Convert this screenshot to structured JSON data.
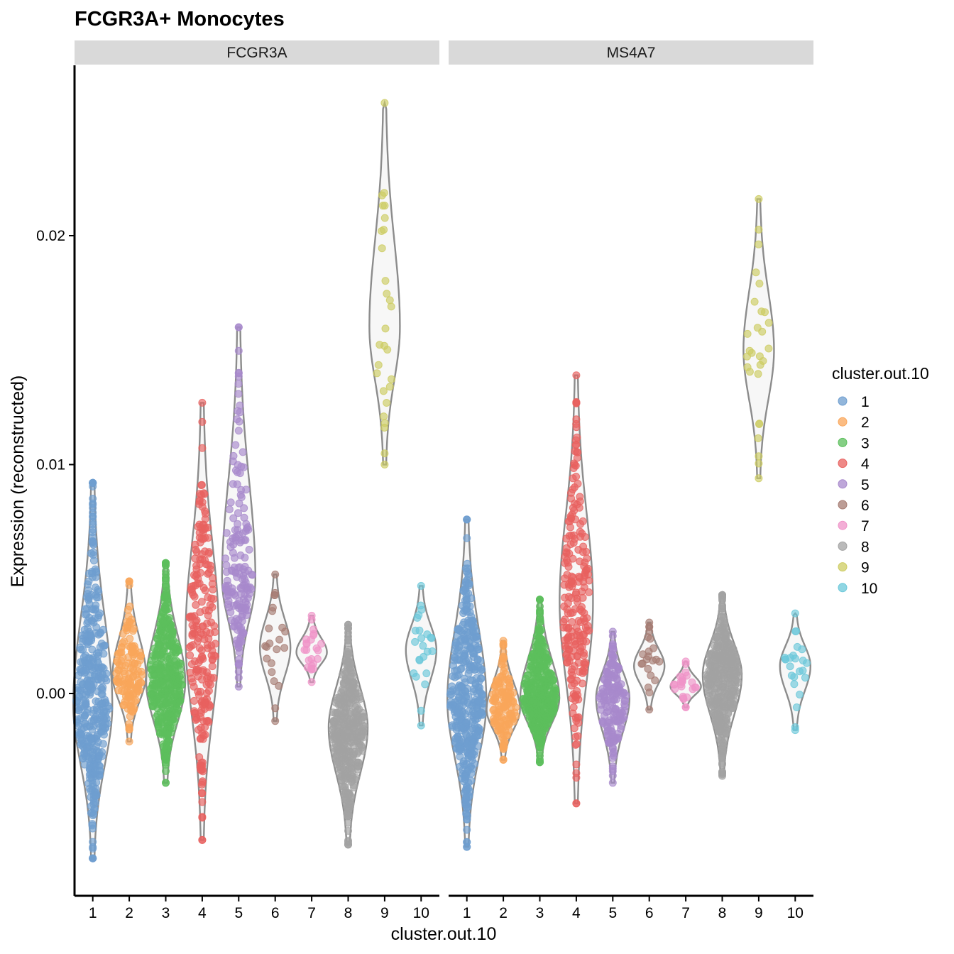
{
  "chart_data": {
    "type": "violin",
    "title": "FCGR3A+ Monocytes",
    "xlabel": "cluster.out.10",
    "ylabel": "Expression (reconstructed)",
    "ylim": [
      -0.009,
      0.027
    ],
    "yticks": [
      "0.00",
      "0.01",
      "0.02"
    ],
    "categories": [
      "1",
      "2",
      "3",
      "4",
      "5",
      "6",
      "7",
      "8",
      "9",
      "10"
    ],
    "legend": {
      "title": "cluster.out.10",
      "placement": "right",
      "colors": [
        "#6e9ecf",
        "#f9a65a",
        "#5cbf5c",
        "#e8615f",
        "#a889cc",
        "#a67c73",
        "#ef93c8",
        "#a3a3a3",
        "#cdcc62",
        "#6bc8da"
      ]
    },
    "facets": [
      {
        "label": "FCGR3A",
        "clusters": [
          {
            "cluster": "1",
            "min": -0.0072,
            "max": 0.0092,
            "center": -0.0005,
            "n": 400
          },
          {
            "cluster": "2",
            "min": -0.0021,
            "max": 0.0049,
            "center": 0.0008,
            "n": 140
          },
          {
            "cluster": "3",
            "min": -0.0039,
            "max": 0.0057,
            "center": 0.0005,
            "n": 400
          },
          {
            "cluster": "4",
            "min": -0.0064,
            "max": 0.0127,
            "center": 0.0025,
            "n": 220
          },
          {
            "cluster": "5",
            "min": 0.0003,
            "max": 0.016,
            "center": 0.005,
            "n": 170
          },
          {
            "cluster": "6",
            "min": -0.0012,
            "max": 0.0052,
            "center": 0.002,
            "n": 22
          },
          {
            "cluster": "7",
            "min": 0.0005,
            "max": 0.0034,
            "center": 0.0018,
            "n": 24
          },
          {
            "cluster": "8",
            "min": -0.0066,
            "max": 0.003,
            "center": -0.0015,
            "n": 400
          },
          {
            "cluster": "9",
            "min": 0.01,
            "max": 0.0258,
            "center": 0.016,
            "n": 28
          },
          {
            "cluster": "10",
            "min": -0.0014,
            "max": 0.0047,
            "center": 0.0019,
            "n": 24
          }
        ]
      },
      {
        "label": "MS4A7",
        "clusters": [
          {
            "cluster": "1",
            "min": -0.0067,
            "max": 0.0076,
            "center": -0.0003,
            "n": 400
          },
          {
            "cluster": "2",
            "min": -0.0029,
            "max": 0.0023,
            "center": -0.0007,
            "n": 140
          },
          {
            "cluster": "3",
            "min": -0.003,
            "max": 0.0041,
            "center": -0.0002,
            "n": 400
          },
          {
            "cluster": "4",
            "min": -0.0048,
            "max": 0.0139,
            "center": 0.004,
            "n": 220
          },
          {
            "cluster": "5",
            "min": -0.0039,
            "max": 0.0027,
            "center": -0.0002,
            "n": 170
          },
          {
            "cluster": "6",
            "min": -0.0007,
            "max": 0.0031,
            "center": 0.0012,
            "n": 22
          },
          {
            "cluster": "7",
            "min": -0.0006,
            "max": 0.0014,
            "center": 0.0003,
            "n": 24
          },
          {
            "cluster": "8",
            "min": -0.0036,
            "max": 0.0043,
            "center": 0.0008,
            "n": 400
          },
          {
            "cluster": "9",
            "min": 0.0094,
            "max": 0.0216,
            "center": 0.015,
            "n": 28
          },
          {
            "cluster": "10",
            "min": -0.0016,
            "max": 0.0035,
            "center": 0.0012,
            "n": 24
          }
        ]
      }
    ]
  }
}
